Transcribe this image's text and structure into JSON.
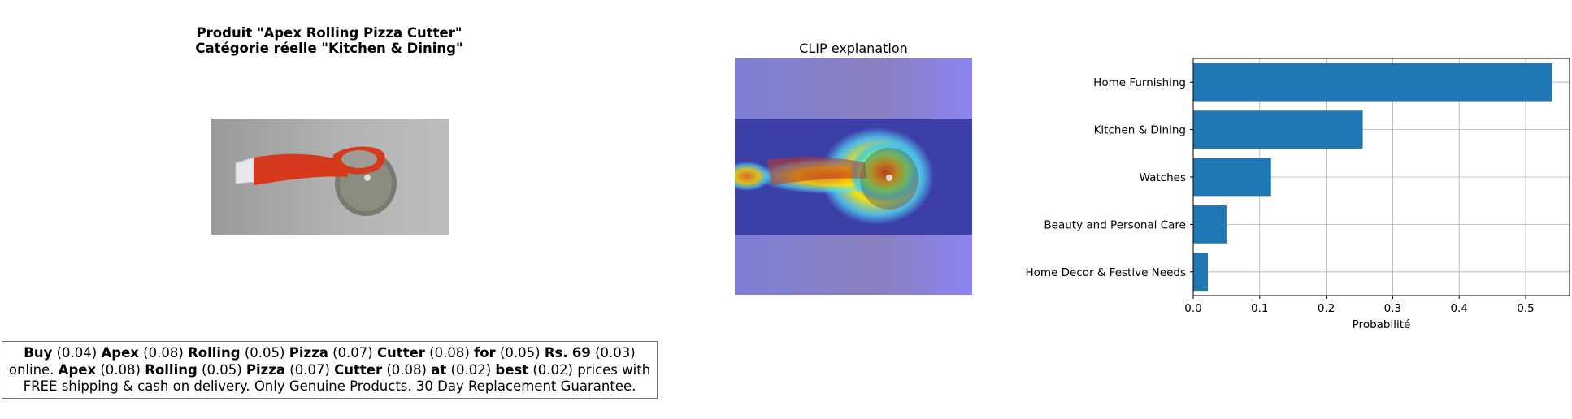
{
  "product_title": {
    "line1": "Produit \"Apex Rolling Pizza Cutter\"",
    "line2": "Catégorie réelle \"Kitchen & Dining\""
  },
  "clip_title": "CLIP explanation",
  "caption": {
    "tokens": [
      {
        "word": "Buy",
        "score": "(0.04)"
      },
      {
        "word": "Apex",
        "score": "(0.08)"
      },
      {
        "word": "Rolling",
        "score": "(0.05)"
      },
      {
        "word": "Pizza",
        "score": "(0.07)"
      },
      {
        "word": "Cutter",
        "score": "(0.08)"
      },
      {
        "word": "for",
        "score": "(0.05)"
      },
      {
        "word": "Rs.",
        "score": ""
      },
      {
        "word": "69",
        "score": "(0.03)"
      }
    ],
    "mid_text": "online.",
    "tokens2": [
      {
        "word": "Apex",
        "score": "(0.08)"
      },
      {
        "word": "Rolling",
        "score": "(0.05)"
      },
      {
        "word": "Pizza",
        "score": "(0.07)"
      },
      {
        "word": "Cutter",
        "score": "(0.08)"
      },
      {
        "word": "at",
        "score": "(0.02)"
      },
      {
        "word": "best",
        "score": "(0.02)"
      }
    ],
    "tail_text": "prices with",
    "line3": "FREE shipping & cash on delivery. Only Genuine Products. 30 Day Replacement Guarantee."
  },
  "chart_data": {
    "type": "bar",
    "orientation": "horizontal",
    "categories": [
      "Home Furnishing",
      "Kitchen & Dining",
      "Watches",
      "Beauty and Personal Care",
      "Home Decor & Festive Needs"
    ],
    "values": [
      0.54,
      0.255,
      0.117,
      0.05,
      0.022
    ],
    "xlabel": "Probabilité",
    "ylabel": "",
    "xlim": [
      0,
      0.566
    ],
    "xticks": [
      0.0,
      0.1,
      0.2,
      0.3,
      0.4,
      0.5
    ],
    "xtick_labels": [
      "0.0",
      "0.1",
      "0.2",
      "0.3",
      "0.4",
      "0.5"
    ],
    "grid": true,
    "bar_color": "#1f77b4"
  }
}
